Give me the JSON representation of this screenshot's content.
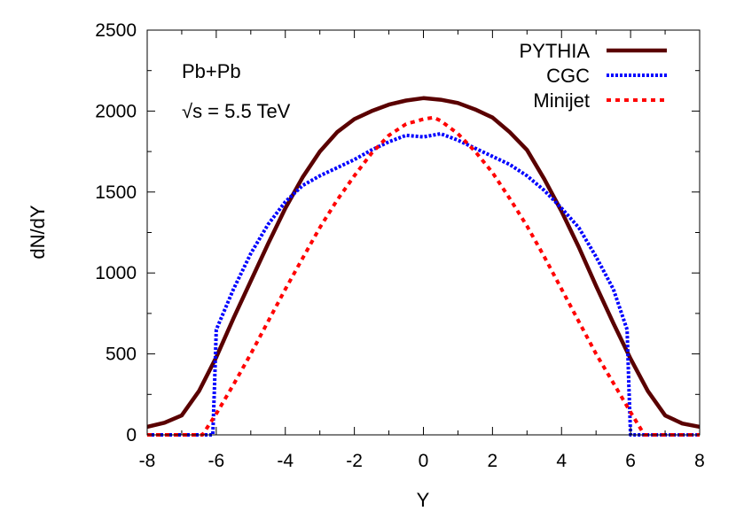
{
  "chart_data": {
    "type": "line",
    "title": "",
    "xlabel": "Y",
    "ylabel": "dN/dY",
    "xlim": [
      -8,
      8
    ],
    "ylim": [
      0,
      2500
    ],
    "xticks": [
      -8,
      -6,
      -4,
      -2,
      0,
      2,
      4,
      6,
      8
    ],
    "yticks": [
      0,
      500,
      1000,
      1500,
      2000,
      2500
    ],
    "grid": false,
    "legend_position": "top-right",
    "annotations": [
      "Pb+Pb",
      "√s = 5.5 TeV"
    ],
    "series": [
      {
        "name": "PYTHIA",
        "color": "#5a0000",
        "style": "solid",
        "x": [
          -8,
          -7.5,
          -7,
          -6.5,
          -6,
          -5.5,
          -5,
          -4.5,
          -4,
          -3.5,
          -3,
          -2.5,
          -2,
          -1.5,
          -1,
          -0.5,
          0,
          0.5,
          1,
          1.5,
          2,
          2.5,
          3,
          3.5,
          4,
          4.5,
          5,
          5.5,
          6,
          6.5,
          7,
          7.5,
          8
        ],
        "y": [
          50,
          75,
          120,
          270,
          480,
          720,
          950,
          1180,
          1400,
          1590,
          1750,
          1870,
          1950,
          2000,
          2040,
          2065,
          2080,
          2070,
          2050,
          2010,
          1960,
          1870,
          1760,
          1580,
          1380,
          1160,
          920,
          690,
          470,
          270,
          120,
          70,
          50
        ]
      },
      {
        "name": "CGC",
        "color": "#0000ff",
        "style": "dotted",
        "x": [
          -8,
          -6.1,
          -6.05,
          -6,
          -5.5,
          -5,
          -4.5,
          -4,
          -3.5,
          -3,
          -2.5,
          -2,
          -1.5,
          -1,
          -0.5,
          0,
          0.5,
          1,
          1.5,
          2,
          2.5,
          3,
          3.5,
          4,
          4.5,
          5,
          5.5,
          5.9,
          5.95,
          6,
          8
        ],
        "y": [
          0,
          0,
          300,
          650,
          900,
          1120,
          1300,
          1440,
          1540,
          1600,
          1650,
          1700,
          1760,
          1810,
          1850,
          1840,
          1860,
          1820,
          1770,
          1720,
          1670,
          1600,
          1510,
          1400,
          1280,
          1100,
          900,
          650,
          300,
          0,
          0
        ]
      },
      {
        "name": "Minijet",
        "color": "#ff0000",
        "style": "dashed",
        "x": [
          -8,
          -6.4,
          -6,
          -5.5,
          -5,
          -4.5,
          -4,
          -3.5,
          -3,
          -2.5,
          -2,
          -1.5,
          -1,
          -0.5,
          0,
          0.3,
          0.5,
          1,
          1.5,
          2,
          2.5,
          3,
          3.5,
          4,
          4.5,
          5,
          5.5,
          6,
          6.4,
          8
        ],
        "y": [
          0,
          0,
          130,
          310,
          500,
          700,
          900,
          1090,
          1280,
          1450,
          1600,
          1740,
          1850,
          1920,
          1950,
          1960,
          1940,
          1860,
          1750,
          1620,
          1460,
          1290,
          1100,
          900,
          700,
          500,
          320,
          140,
          0,
          0
        ]
      }
    ]
  }
}
